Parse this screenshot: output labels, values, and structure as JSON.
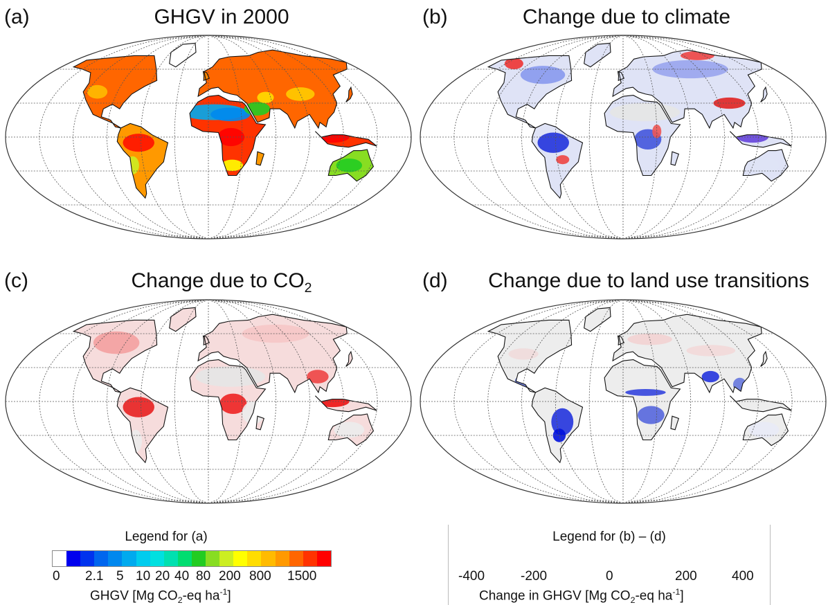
{
  "panels": [
    {
      "id": "a",
      "label": "(a)",
      "title": "GHGV in 2000",
      "title_sub": "",
      "scheme": "ghgv"
    },
    {
      "id": "b",
      "label": "(b)",
      "title": "Change due to climate",
      "title_sub": "",
      "scheme": "climate"
    },
    {
      "id": "c",
      "label": "(c)",
      "title": "Change due to CO",
      "title_sub": "2",
      "scheme": "co2"
    },
    {
      "id": "d",
      "label": "(d)",
      "title": "Change due to land use transitions",
      "title_sub": "",
      "scheme": "landuse"
    }
  ],
  "legend_a": {
    "title": "Legend for (a)",
    "ticks": [
      "0",
      "2.1",
      "5",
      "10",
      "20",
      "40",
      "80",
      "200",
      "800",
      "1500"
    ],
    "colors": [
      "#ffffff",
      "#0000ee",
      "#0033ee",
      "#0066ee",
      "#0088ee",
      "#00aaee",
      "#00ccee",
      "#00e0e0",
      "#00e0b0",
      "#00dd70",
      "#22cc22",
      "#88dd22",
      "#ccee22",
      "#ffff00",
      "#ffdd00",
      "#ffbb00",
      "#ff9900",
      "#ff6600",
      "#ff3300",
      "#ff0000"
    ],
    "axis_pre": "GHGV  [Mg CO",
    "axis_sub": "2",
    "axis_mid": "-eq ha",
    "axis_sup": "-1",
    "axis_post": "]"
  },
  "legend_bd": {
    "title": "Legend for (b) – (d)",
    "ticks": [
      "-400",
      "-200",
      "0",
      "200",
      "400"
    ],
    "axis_pre": "Change in GHGV  [Mg CO",
    "axis_sub": "2",
    "axis_mid": "-eq ha",
    "axis_sup": "-1",
    "axis_post": "]"
  },
  "colors": {
    "land_base": "#ececec",
    "coast": "#111111",
    "gridline": "#555555",
    "ocean": "#ffffff"
  }
}
